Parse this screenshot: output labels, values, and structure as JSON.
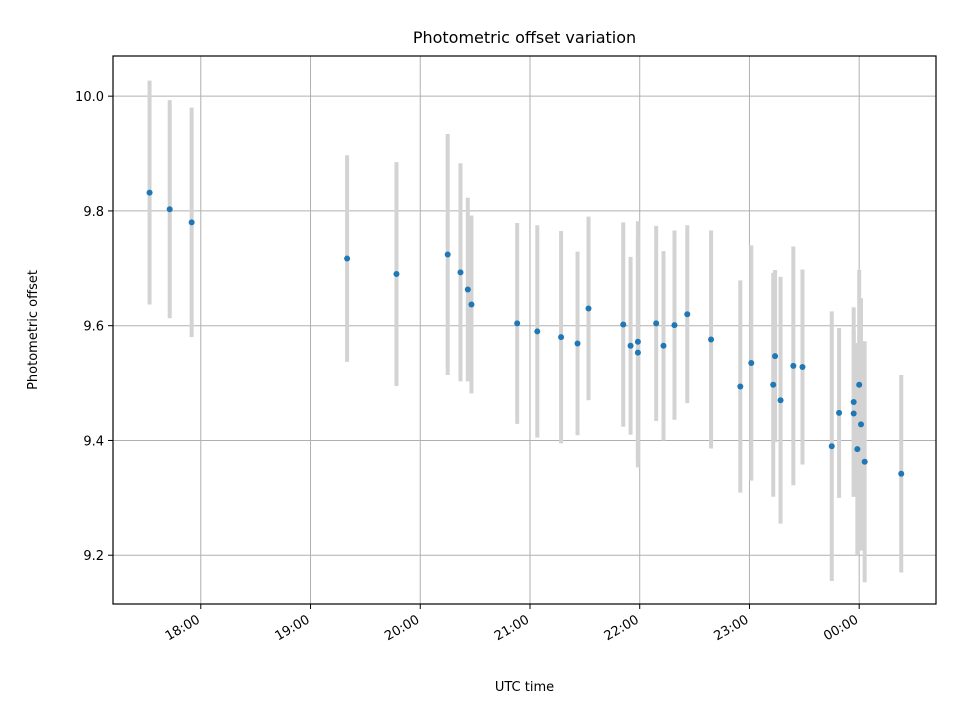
{
  "chart_data": {
    "type": "scatter",
    "title": "Photometric offset variation",
    "xlabel": "UTC time",
    "ylabel": "Photometric offset",
    "grid": true,
    "marker_color": "#1f77b4",
    "errorbar_color": "#d3d3d3",
    "xlim": [
      "17:12",
      "00:42"
    ],
    "ylim": [
      9.115,
      10.07
    ],
    "x_ticks": [
      "18:00",
      "19:00",
      "20:00",
      "21:00",
      "22:00",
      "23:00",
      "00:00"
    ],
    "y_ticks": [
      9.2,
      9.4,
      9.6,
      9.8,
      10.0
    ],
    "y_tick_labels": [
      "9.2",
      "9.4",
      "9.6",
      "9.8",
      "10.0"
    ],
    "points": [
      {
        "x": "17:32",
        "y": 9.832,
        "yerr": 0.195
      },
      {
        "x": "17:43",
        "y": 9.803,
        "yerr": 0.19
      },
      {
        "x": "17:55",
        "y": 9.78,
        "yerr": 0.2
      },
      {
        "x": "19:20",
        "y": 9.717,
        "yerr": 0.18
      },
      {
        "x": "19:47",
        "y": 9.69,
        "yerr": 0.195
      },
      {
        "x": "20:15",
        "y": 9.724,
        "yerr": 0.21
      },
      {
        "x": "20:22",
        "y": 9.693,
        "yerr": 0.19
      },
      {
        "x": "20:26",
        "y": 9.663,
        "yerr": 0.16
      },
      {
        "x": "20:28",
        "y": 9.637,
        "yerr": 0.155
      },
      {
        "x": "20:53",
        "y": 9.604,
        "yerr": 0.175
      },
      {
        "x": "21:04",
        "y": 9.59,
        "yerr": 0.185
      },
      {
        "x": "21:17",
        "y": 9.58,
        "yerr": 0.185
      },
      {
        "x": "21:26",
        "y": 9.569,
        "yerr": 0.16
      },
      {
        "x": "21:32",
        "y": 9.63,
        "yerr": 0.16
      },
      {
        "x": "21:51",
        "y": 9.602,
        "yerr": 0.178
      },
      {
        "x": "21:55",
        "y": 9.565,
        "yerr": 0.155
      },
      {
        "x": "21:59",
        "y": 9.572,
        "yerr": 0.21
      },
      {
        "x": "21:59",
        "y": 9.553,
        "yerr": 0.2
      },
      {
        "x": "22:09",
        "y": 9.604,
        "yerr": 0.17
      },
      {
        "x": "22:13",
        "y": 9.565,
        "yerr": 0.165
      },
      {
        "x": "22:19",
        "y": 9.601,
        "yerr": 0.165
      },
      {
        "x": "22:26",
        "y": 9.62,
        "yerr": 0.155
      },
      {
        "x": "22:39",
        "y": 9.576,
        "yerr": 0.19
      },
      {
        "x": "22:55",
        "y": 9.494,
        "yerr": 0.185
      },
      {
        "x": "23:01",
        "y": 9.535,
        "yerr": 0.205
      },
      {
        "x": "23:13",
        "y": 9.497,
        "yerr": 0.195
      },
      {
        "x": "23:14",
        "y": 9.547,
        "yerr": 0.15
      },
      {
        "x": "23:17",
        "y": 9.47,
        "yerr": 0.215
      },
      {
        "x": "23:24",
        "y": 9.53,
        "yerr": 0.208
      },
      {
        "x": "23:29",
        "y": 9.528,
        "yerr": 0.17
      },
      {
        "x": "23:45",
        "y": 9.39,
        "yerr": 0.235
      },
      {
        "x": "23:49",
        "y": 9.448,
        "yerr": 0.148
      },
      {
        "x": "23:57",
        "y": 9.467,
        "yerr": 0.165
      },
      {
        "x": "23:57",
        "y": 9.447,
        "yerr": 0.145
      },
      {
        "x": "23:59",
        "y": 9.385,
        "yerr": 0.185
      },
      {
        "x": "00:00",
        "y": 9.497,
        "yerr": 0.2
      },
      {
        "x": "00:01",
        "y": 9.428,
        "yerr": 0.22
      },
      {
        "x": "00:03",
        "y": 9.363,
        "yerr": 0.21
      },
      {
        "x": "00:23",
        "y": 9.342,
        "yerr": 0.172
      }
    ]
  }
}
